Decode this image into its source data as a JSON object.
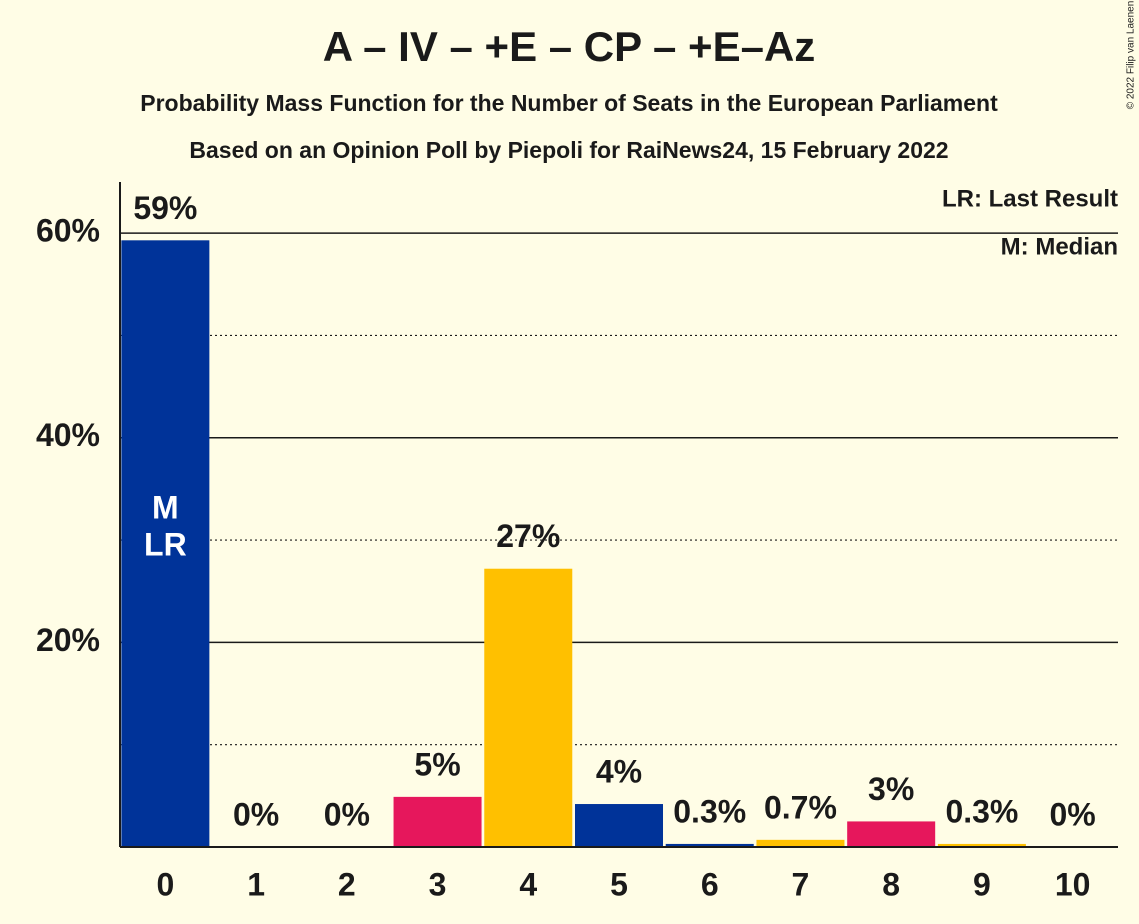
{
  "chart_data": {
    "type": "bar",
    "title": "A – IV – +E – CP – +E–Az",
    "subtitle": "Probability Mass Function for the Number of Seats in the European Parliament",
    "source": "Based on an Opinion Poll by Piepoli for RaiNews24, 15 February 2022",
    "copyright": "© 2022 Filip van Laenen",
    "legend_notes": [
      "LR: Last Result",
      "M: Median"
    ],
    "median": 0,
    "median_label": "M",
    "last_result": 0,
    "last_result_label": "LR",
    "categories": [
      "0",
      "1",
      "2",
      "3",
      "4",
      "5",
      "6",
      "7",
      "8",
      "9",
      "10"
    ],
    "values": [
      59.3,
      0,
      0,
      4.9,
      27.2,
      4.2,
      0.3,
      0.7,
      2.5,
      0.3,
      0
    ],
    "value_labels": [
      "59%",
      "0%",
      "0%",
      "5%",
      "27%",
      "4%",
      "0.3%",
      "0.7%",
      "3%",
      "0.3%",
      "0%"
    ],
    "colors": [
      "#003399",
      "#e6175c",
      "#ffc000",
      "#e6175c",
      "#ffc000",
      "#003399",
      "#003399",
      "#ffc000",
      "#e6175c",
      "#ffc000",
      "#003399"
    ],
    "ylim": [
      0,
      65
    ],
    "yticks": [
      {
        "value": 20,
        "label": "20%"
      },
      {
        "value": 40,
        "label": "40%"
      },
      {
        "value": 60,
        "label": "60%"
      }
    ],
    "minor_yticks": [
      10,
      30,
      50
    ],
    "grid": true
  }
}
